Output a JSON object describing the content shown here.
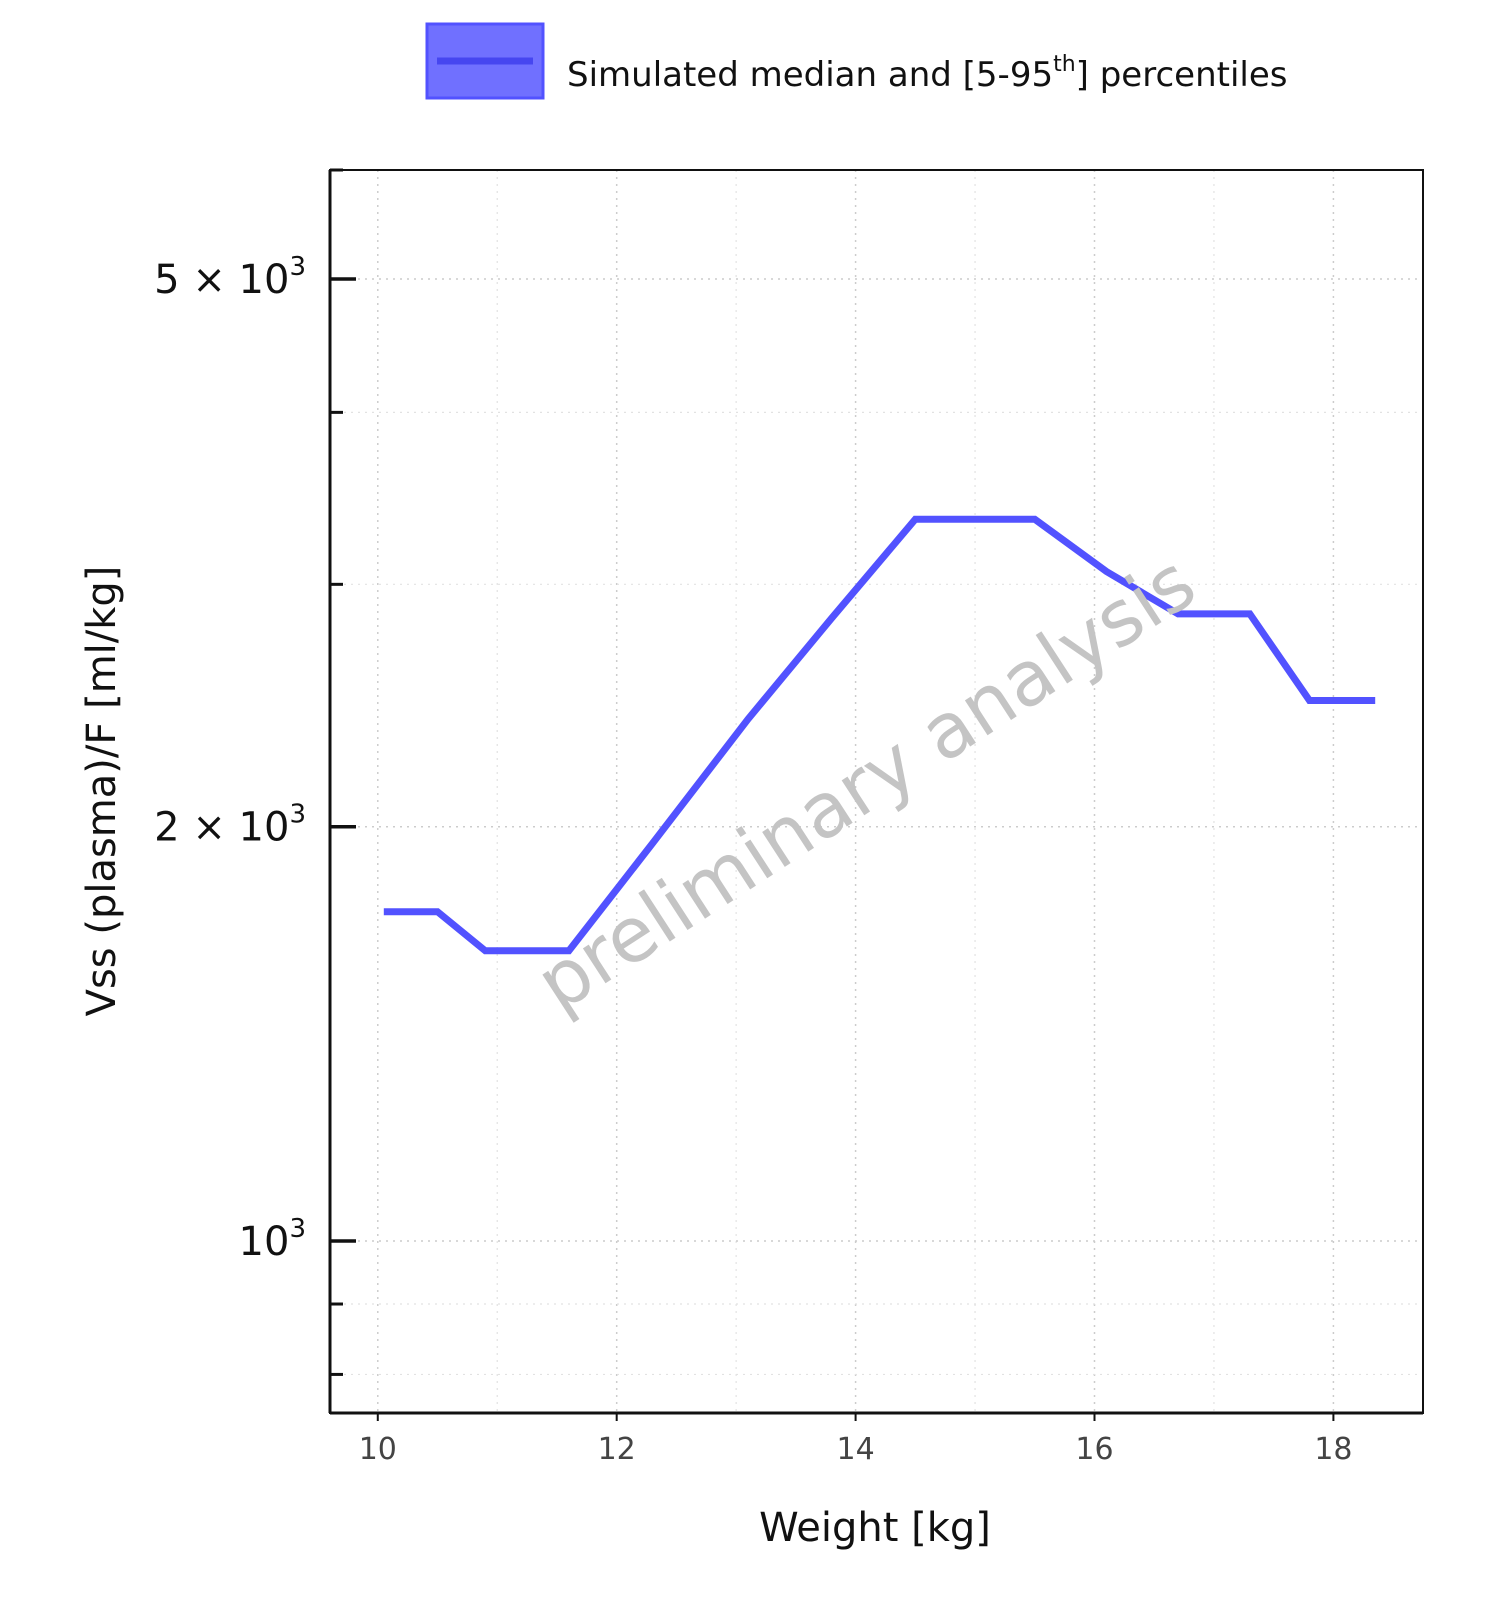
{
  "chart_data": {
    "type": "line",
    "x": [
      10.05,
      10.5,
      10.9,
      11.6,
      12.3,
      13.1,
      13.8,
      14.5,
      15.5,
      16.1,
      16.7,
      17.3,
      17.8,
      18.35
    ],
    "series": [
      {
        "name": "Simulated median and [5-95th] percentiles",
        "values": [
          1735,
          1735,
          1625,
          1625,
          1945,
          2395,
          2835,
          3345,
          3345,
          3065,
          2855,
          2855,
          2470,
          2470
        ],
        "color": "#5252ff"
      }
    ],
    "legend": {
      "label_pre": "Simulated median and [5-95",
      "label_sup": "th",
      "label_post": "] percentiles",
      "placement": "top-center",
      "color": "#7070ff"
    },
    "xlabel": "Weight [kg]",
    "ylabel": "Vss (plasma)/F [ml/kg]",
    "xlim": [
      9.6,
      18.75
    ],
    "ylim": [
      750,
      6000
    ],
    "yscale": "log",
    "xticks": [
      10,
      12,
      14,
      16,
      18
    ],
    "xtick_labels": [
      "10",
      "12",
      "14",
      "16",
      "18"
    ],
    "yticks_major": [
      {
        "value": 1000,
        "mantissa": "",
        "base": "10",
        "exp": "3"
      },
      {
        "value": 2000,
        "mantissa": "2 × ",
        "base": "10",
        "exp": "3"
      },
      {
        "value": 5000,
        "mantissa": "5 × ",
        "base": "10",
        "exp": "3"
      }
    ],
    "yticks_minor": [
      800,
      900,
      3000,
      4000,
      6000
    ],
    "grid": true,
    "watermark": "preliminary analysis"
  }
}
